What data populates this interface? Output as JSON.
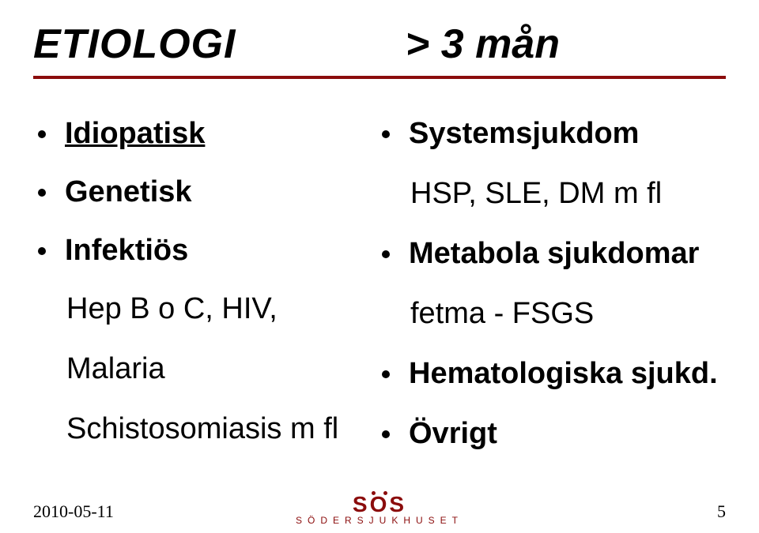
{
  "header": {
    "title_left": "ETIOLOGI",
    "title_right": "> 3 mån"
  },
  "left_items": [
    {
      "label": "Idiopatisk",
      "bold": true,
      "underline": true,
      "bullet": true
    },
    {
      "label": "Genetisk",
      "bold": true,
      "underline": false,
      "bullet": true
    },
    {
      "label": "Infektiös",
      "bold": true,
      "underline": false,
      "bullet": true
    },
    {
      "label": "Hep B o C, HIV,",
      "bold": false,
      "underline": false,
      "bullet": false
    },
    {
      "label": "Malaria",
      "bold": false,
      "underline": false,
      "bullet": false
    },
    {
      "label": "Schistosomiasis m fl",
      "bold": false,
      "underline": false,
      "bullet": false
    }
  ],
  "right_items": [
    {
      "label": "Systemsjukdom",
      "bold": true,
      "bullet": true
    },
    {
      "label": "HSP, SLE, DM m fl",
      "bold": false,
      "bullet": false
    },
    {
      "label": "Metabola sjukdomar",
      "bold": true,
      "bullet": true
    },
    {
      "label": "fetma - FSGS",
      "bold": false,
      "bullet": false
    },
    {
      "label": "Hematologiska sjukd.",
      "bold": true,
      "bullet": true
    },
    {
      "label": "Övrigt",
      "bold": true,
      "bullet": true
    }
  ],
  "footer": {
    "date": "2010-05-11",
    "page": "5",
    "logo_top": "SOS",
    "logo_bottom": "SÖDERSJUKHUSET"
  },
  "colors": {
    "rule": "#8b0c0c",
    "logo": "#8b0c0c",
    "text": "#000000",
    "bg": "#ffffff"
  }
}
